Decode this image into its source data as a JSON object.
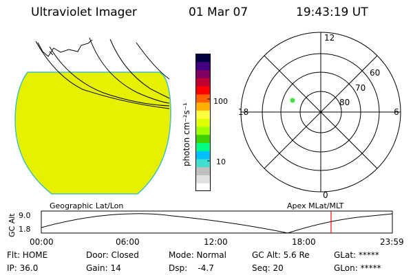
{
  "header": {
    "instrument": "Ultraviolet Imager",
    "date": "01 Mar 07",
    "time": "19:43:19 UT"
  },
  "colorbar": {
    "unit_label": "photon cm⁻²s⁻¹",
    "tick_100": "100",
    "tick_10": "10",
    "colors": [
      "#ffffff",
      "#e0e0e0",
      "#c0c0c0",
      "#40e0d0",
      "#00c0ff",
      "#00ff80",
      "#40d000",
      "#a0ff00",
      "#e0ff00",
      "#ffff40",
      "#ffb000",
      "#ff6000",
      "#ff0000",
      "#c00030",
      "#800060",
      "#400080",
      "#000040"
    ]
  },
  "image_panel": {
    "fill_color": "#e6f000",
    "edge_color": "#40c0c0"
  },
  "polar": {
    "mlt_labels": {
      "top": "12",
      "left": "18",
      "right": "6",
      "bottom": "0"
    },
    "lat_labels": [
      "60",
      "70",
      "80"
    ],
    "point_color": "#40e040"
  },
  "timeline": {
    "ylabel": "GC Alt",
    "ytick_top": "9.0",
    "ytick_bottom": "1.8",
    "left_title": "Geographic Lat/Lon",
    "right_title": "Apex MLat/MLT",
    "xticks": [
      "00:00",
      "06:00",
      "12:00",
      "18:00",
      "23:59"
    ],
    "marker_color": "#ff0000"
  },
  "status": {
    "row1": {
      "flt": "Flt: HOME",
      "door": "Door: Closed",
      "mode": "Mode: Normal",
      "gcalt": "GC Alt: 5.6 Re",
      "glat": "GLat: *****"
    },
    "row2": {
      "ip": "IP: 36.0",
      "gain": "Gain: 14",
      "dsp": "Dsp:    -4.7",
      "seq": "Seq: 20",
      "glon": "GLon: *****"
    }
  }
}
